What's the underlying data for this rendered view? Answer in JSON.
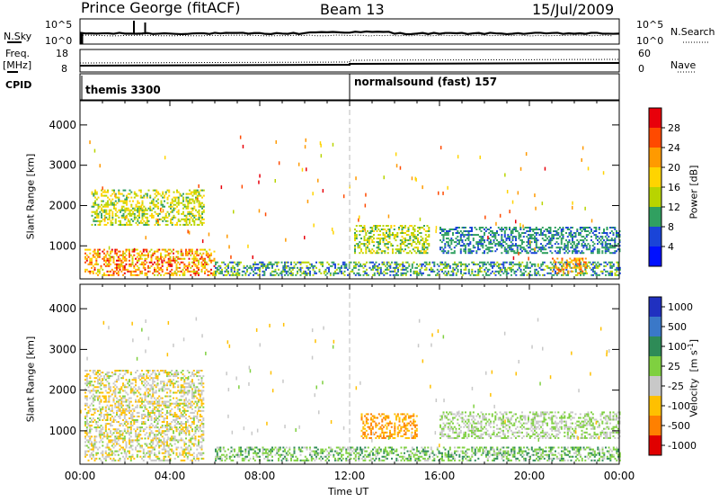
{
  "header": {
    "station": "Prince George (fitACF)",
    "beam": "Beam 13",
    "date": "15/Jul/2009"
  },
  "noise_panel": {
    "left_label": "N.Sky",
    "left_ticks": [
      "10^5",
      "10^0"
    ],
    "right_ticks": [
      "10^5",
      "10^0"
    ],
    "right_label": "N.Search"
  },
  "freq_panel": {
    "left_label_1": "Freq.",
    "left_label_2": "[MHz]",
    "left_ticks": [
      "18",
      "8"
    ],
    "right_ticks": [
      "60",
      "0"
    ],
    "right_label": "Nave"
  },
  "cpid_panel": {
    "label": "CPID",
    "programs": [
      "themis 3300",
      "normalsound (fast) 157"
    ]
  },
  "axes": {
    "ylabel": "Slant Range [km]",
    "yticks": [
      "4000",
      "3000",
      "2000",
      "1000"
    ],
    "xlabel": "Time UT",
    "xticks": [
      "00:00",
      "04:00",
      "08:00",
      "12:00",
      "16:00",
      "20:00",
      "00:00"
    ]
  },
  "power_scale": {
    "title": "Power [dB]",
    "ticks": [
      "28",
      "24",
      "20",
      "16",
      "12",
      "8",
      "4"
    ],
    "colors": [
      "#e8000b",
      "#ff4a00",
      "#ff9a00",
      "#ffd400",
      "#b8d400",
      "#30a060",
      "#1a44d8",
      "#0010ff"
    ]
  },
  "velocity_scale": {
    "title": "Velocity [m s^-1]",
    "ticks": [
      "1000",
      "500",
      "100",
      "25",
      "-25",
      "-100",
      "-500",
      "-1000"
    ],
    "colors": [
      "#2030c0",
      "#3a78c8",
      "#2e8b57",
      "#7fd040",
      "#c8c8c8",
      "#ffc000",
      "#ff8000",
      "#e00000"
    ]
  },
  "chart_data": [
    {
      "type": "heatmap",
      "title": "Power [dB]",
      "xlabel": "Time UT",
      "ylabel": "Slant Range [km]",
      "xlim": [
        0,
        24
      ],
      "ylim": [
        180,
        4600
      ],
      "x_ticks": [
        "00:00",
        "04:00",
        "08:00",
        "12:00",
        "16:00",
        "20:00",
        "00:00"
      ],
      "y_ticks": [
        1000,
        2000,
        3000,
        4000
      ],
      "colorbar": {
        "label": "Power [dB]",
        "ticks": [
          4,
          8,
          12,
          16,
          20,
          24,
          28
        ]
      },
      "regions": [
        {
          "t": [
            0.2,
            6.0
          ],
          "r": [
            250,
            900
          ],
          "power": [
            12,
            28
          ]
        },
        {
          "t": [
            0.5,
            5.5
          ],
          "r": [
            1500,
            2400
          ],
          "power": [
            8,
            18
          ]
        },
        {
          "t": [
            6.0,
            24.0
          ],
          "r": [
            250,
            600
          ],
          "power": [
            4,
            12
          ]
        },
        {
          "t": [
            12.2,
            15.5
          ],
          "r": [
            800,
            1500
          ],
          "power": [
            8,
            16
          ]
        },
        {
          "t": [
            16.0,
            24.0
          ],
          "r": [
            800,
            1450
          ],
          "power": [
            4,
            10
          ]
        },
        {
          "t": [
            21.0,
            22.5
          ],
          "r": [
            300,
            700
          ],
          "power": [
            16,
            24
          ]
        }
      ]
    },
    {
      "type": "heatmap",
      "title": "Velocity [m s^-1]",
      "xlabel": "Time UT",
      "ylabel": "Slant Range [km]",
      "xlim": [
        0,
        24
      ],
      "ylim": [
        180,
        4600
      ],
      "colorbar": {
        "label": "Velocity [m s^-1]",
        "ticks": [
          1000,
          500,
          100,
          25,
          -25,
          -100,
          -500,
          -1000
        ]
      },
      "regions": [
        {
          "t": [
            0.2,
            5.5
          ],
          "r": [
            250,
            2500
          ],
          "velocity": [
            -100,
            25
          ]
        },
        {
          "t": [
            12.5,
            15.0
          ],
          "r": [
            800,
            1400
          ],
          "velocity": [
            -500,
            -100
          ]
        },
        {
          "t": [
            6.0,
            24.0
          ],
          "r": [
            250,
            600
          ],
          "velocity": [
            -25,
            100
          ]
        },
        {
          "t": [
            16.0,
            24.0
          ],
          "r": [
            800,
            1450
          ],
          "velocity": [
            -25,
            25
          ]
        }
      ]
    }
  ]
}
